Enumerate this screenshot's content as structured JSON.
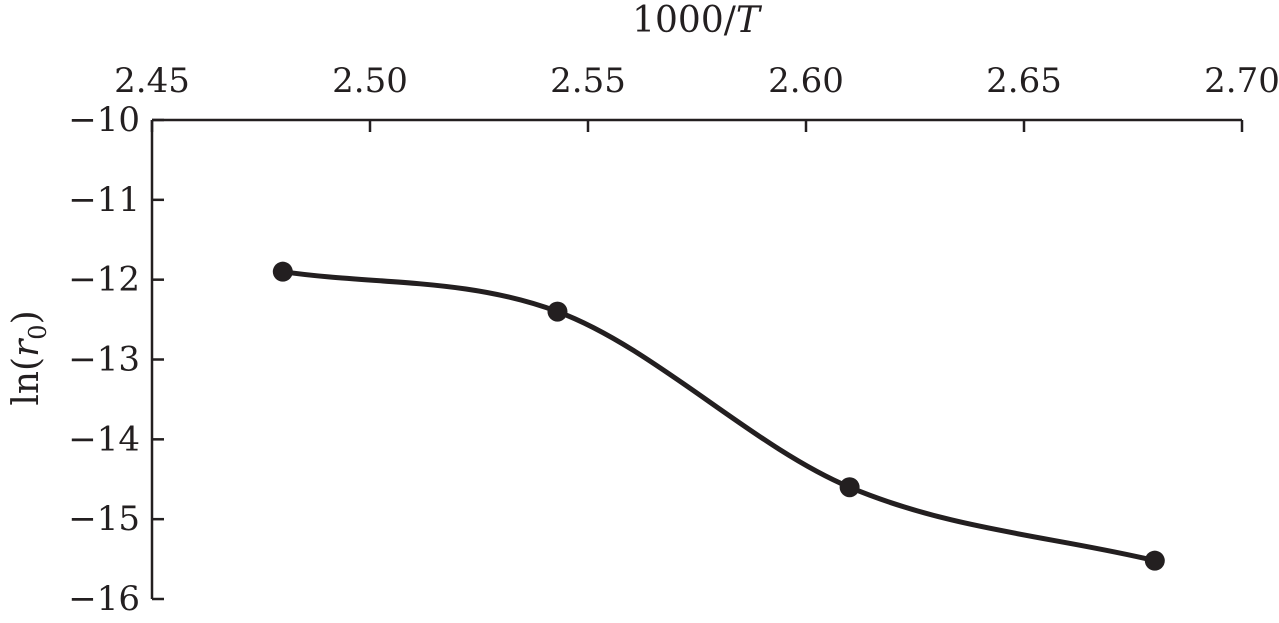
{
  "chart_data": {
    "type": "line",
    "xlabel": {
      "prefix": "1000/",
      "italic": "T"
    },
    "ylabel": {
      "prefix": "ln(",
      "italic": "r",
      "subscript": "0",
      "suffix": ")"
    },
    "x_axis_position": "top",
    "xlim": [
      2.45,
      2.7
    ],
    "ylim": [
      -16,
      -10
    ],
    "x_ticks": [
      2.45,
      2.5,
      2.55,
      2.6,
      2.65,
      2.7
    ],
    "x_tick_labels": [
      "2.45",
      "2.50",
      "2.55",
      "2.60",
      "2.65",
      "2.70"
    ],
    "y_ticks": [
      -10,
      -11,
      -12,
      -13,
      -14,
      -15,
      -16
    ],
    "y_tick_labels": [
      "−10",
      "−11",
      "−12",
      "−13",
      "−14",
      "−15",
      "−16"
    ],
    "grid": false,
    "series": [
      {
        "x": [
          2.48,
          2.543,
          2.61,
          2.68
        ],
        "y": [
          -11.9,
          -12.4,
          -14.6,
          -15.52
        ],
        "smooth": true,
        "markers": "filled-circle",
        "color": "#231f20"
      }
    ]
  }
}
